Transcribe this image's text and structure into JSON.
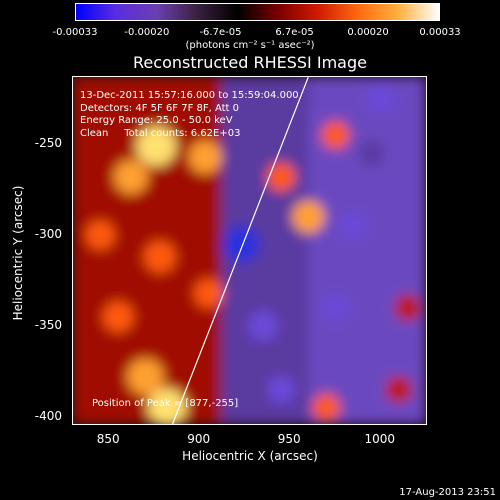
{
  "colorbar": {
    "ticks": [
      "-0.00033",
      "-0.00020",
      "-6.7e-05",
      "6.7e-05",
      "0.00020",
      "0.00033"
    ],
    "tick_values": [
      -0.00033,
      -0.0002,
      -6.7e-05,
      6.7e-05,
      0.0002,
      0.00033
    ],
    "label": "(photons cm⁻² s⁻¹ asec⁻²)",
    "colors": [
      "#0000ff",
      "#5a2ee0",
      "#6b3fb0",
      "#3a2040",
      "#000000",
      "#7a0000",
      "#d01a00",
      "#ff6a10",
      "#ffb040",
      "#ffffff"
    ]
  },
  "title": "Reconstructed RHESSI Image",
  "annotations": [
    "13-Dec-2011 15:57:16.000 to 15:59:04.000",
    "Detectors: 4F 5F 6F 7F 8F, Att 0",
    "Energy Range: 25.0 - 50.0 keV",
    "Clean     Total counts: 6.62E+03"
  ],
  "peak_label": "Position of Peak = [877,-255]",
  "footer_date": "17-Aug-2013 23:51",
  "chart_data": {
    "type": "heatmap",
    "title": "Reconstructed RHESSI Image",
    "xlabel": "Heliocentric X (arcsec)",
    "ylabel": "Heliocentric Y (arcsec)",
    "xlim": [
      830,
      1025
    ],
    "ylim": [
      -404,
      -213
    ],
    "xticks": [
      850,
      900,
      950,
      1000
    ],
    "yticks": [
      -250,
      -300,
      -350,
      -400
    ],
    "value_range": [
      -0.00033,
      0.00033
    ],
    "peak": [
      877,
      -255
    ],
    "limb_line": [
      [
        885,
        -404
      ],
      [
        960,
        -213
      ]
    ],
    "blobs": [
      {
        "x": 876,
        "y": -251,
        "v": 1.0
      },
      {
        "x": 862,
        "y": -268,
        "v": 0.75
      },
      {
        "x": 903,
        "y": -257,
        "v": 0.72
      },
      {
        "x": 845,
        "y": -300,
        "v": 0.55
      },
      {
        "x": 878,
        "y": -312,
        "v": 0.65
      },
      {
        "x": 905,
        "y": -332,
        "v": 0.55
      },
      {
        "x": 855,
        "y": -345,
        "v": 0.6
      },
      {
        "x": 870,
        "y": -378,
        "v": 0.85
      },
      {
        "x": 882,
        "y": -395,
        "v": 0.95
      },
      {
        "x": 960,
        "y": -290,
        "v": 0.7
      },
      {
        "x": 945,
        "y": -268,
        "v": 0.55
      },
      {
        "x": 975,
        "y": -245,
        "v": 0.5
      },
      {
        "x": 970,
        "y": -395,
        "v": 0.5
      },
      {
        "x": 1010,
        "y": -385,
        "v": 0.45
      },
      {
        "x": 1015,
        "y": -340,
        "v": 0.45
      },
      {
        "x": 923,
        "y": -305,
        "v": -0.85
      },
      {
        "x": 935,
        "y": -350,
        "v": -0.6
      },
      {
        "x": 975,
        "y": -340,
        "v": -0.55
      },
      {
        "x": 985,
        "y": -295,
        "v": -0.5
      },
      {
        "x": 995,
        "y": -255,
        "v": -0.45
      },
      {
        "x": 955,
        "y": -225,
        "v": -0.4
      },
      {
        "x": 1000,
        "y": -225,
        "v": -0.55
      },
      {
        "x": 945,
        "y": -385,
        "v": -0.5
      },
      {
        "x": 920,
        "y": -240,
        "v": -0.45
      }
    ]
  }
}
